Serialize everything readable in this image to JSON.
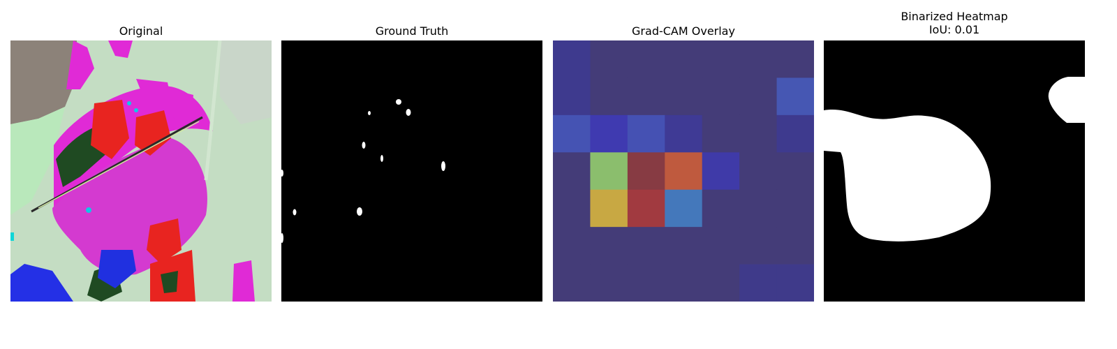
{
  "panels": [
    {
      "title": "Original"
    },
    {
      "title": "Ground Truth"
    },
    {
      "title": "Grad-CAM Overlay"
    },
    {
      "title": "Binarized Heatmap",
      "subtitle": "IoU: 0.01"
    }
  ],
  "gradcam": {
    "grid_rows": 7,
    "grid_cols": 7,
    "cell_colors": [
      [
        "#3e3a8e",
        "#443c78",
        "#443c78",
        "#443c78",
        "#443c78",
        "#443c78",
        "#443c78"
      ],
      [
        "#3e3a8e",
        "#443c78",
        "#443c78",
        "#443c78",
        "#443c78",
        "#443c78",
        "#4657b3"
      ],
      [
        "#4553b3",
        "#3f3ab0",
        "#4551b3",
        "#3f3a95",
        "#443c78",
        "#443c78",
        "#3e3a8e"
      ],
      [
        "#443c78",
        "#8bbe6d",
        "#873b43",
        "#bf5a3e",
        "#3f3aa8",
        "#443c78",
        "#443c78"
      ],
      [
        "#443c78",
        "#c8a843",
        "#a13a40",
        "#4478bb",
        "#443c78",
        "#443c78",
        "#443c78"
      ],
      [
        "#443c78",
        "#443c78",
        "#443c78",
        "#443c78",
        "#443c78",
        "#443c78",
        "#443c78"
      ],
      [
        "#443c78",
        "#443c78",
        "#443c78",
        "#443c78",
        "#443c78",
        "#3f3a8a",
        "#3f3a8a"
      ]
    ]
  }
}
